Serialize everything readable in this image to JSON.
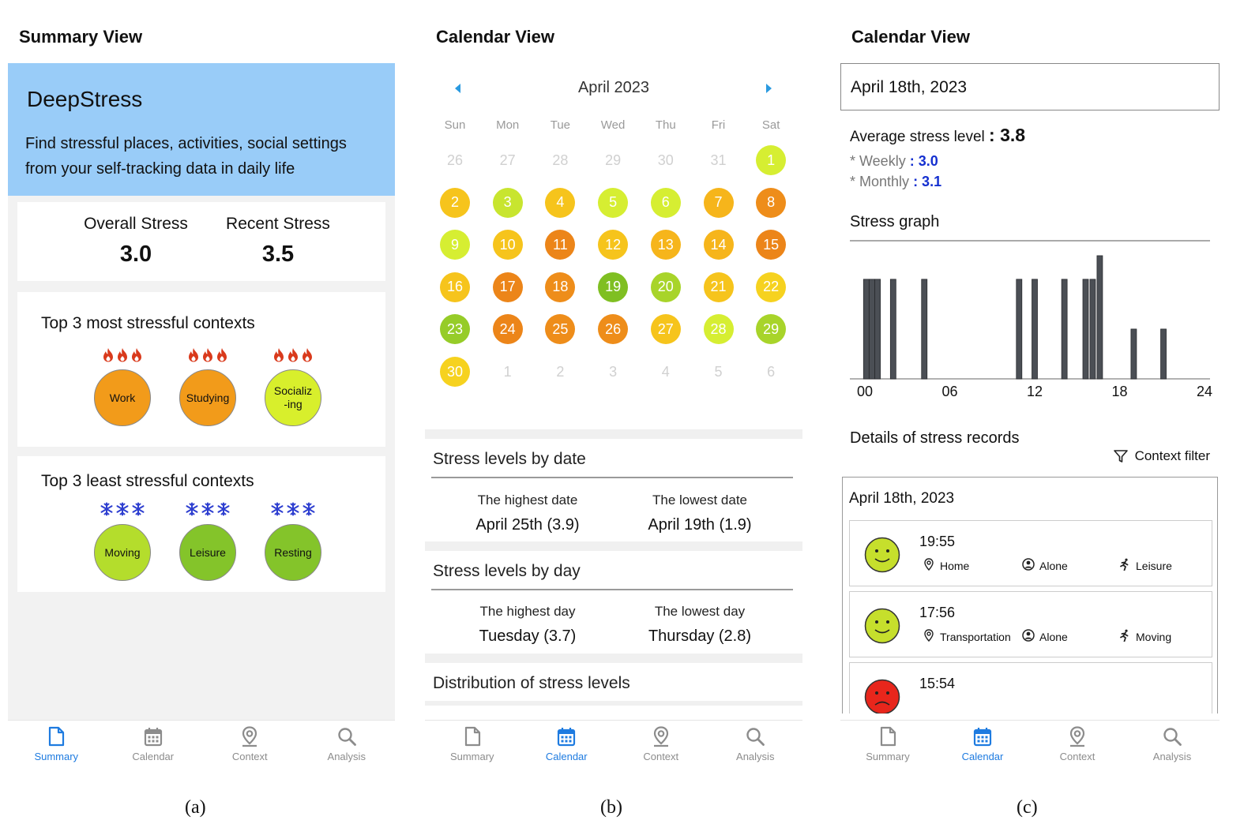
{
  "panel_a": {
    "heading": "Summary View",
    "caption": "(a)",
    "app_name": "DeepStress",
    "description": "Find stressful places, activities, social settings from your self-tracking data in daily life",
    "overall_label": "Overall Stress",
    "overall_value": "3.0",
    "recent_label": "Recent Stress",
    "recent_value": "3.5",
    "most_title": "Top 3 most stressful contexts",
    "most": [
      {
        "label": "Work",
        "color": "#f29b1a"
      },
      {
        "label": "Studying",
        "color": "#f29b1a"
      },
      {
        "label": "Socializ\n-ing",
        "color": "#d8ef2c"
      }
    ],
    "least_title": "Top 3 least stressful contexts",
    "least": [
      {
        "label": "Moving",
        "color": "#b4dd2c"
      },
      {
        "label": "Leisure",
        "color": "#84c42a"
      },
      {
        "label": "Resting",
        "color": "#84c42a"
      }
    ],
    "hot_icon": "fire-icon",
    "cold_icon": "snowflake-icon",
    "hot_color": "#d93a1c",
    "cold_color": "#2e3fd0"
  },
  "panel_b": {
    "heading": "Calendar View",
    "caption": "(b)",
    "month": "April 2023",
    "weekdays": [
      "Sun",
      "Mon",
      "Tue",
      "Wed",
      "Thu",
      "Fri",
      "Sat"
    ],
    "weeks": [
      [
        {
          "d": "26",
          "m": 1
        },
        {
          "d": "27",
          "m": 1
        },
        {
          "d": "28",
          "m": 1
        },
        {
          "d": "29",
          "m": 1
        },
        {
          "d": "30",
          "m": 1
        },
        {
          "d": "31",
          "m": 1
        },
        {
          "d": "1",
          "c": "#d6ee32"
        }
      ],
      [
        {
          "d": "2",
          "c": "#f6c41c"
        },
        {
          "d": "3",
          "c": "#c8e52f"
        },
        {
          "d": "4",
          "c": "#f6c41c"
        },
        {
          "d": "5",
          "c": "#d6ee32"
        },
        {
          "d": "6",
          "c": "#d6ee32"
        },
        {
          "d": "7",
          "c": "#f6b51b"
        },
        {
          "d": "8",
          "c": "#ee8d1a"
        }
      ],
      [
        {
          "d": "9",
          "c": "#d6ee32"
        },
        {
          "d": "10",
          "c": "#f6c41c"
        },
        {
          "d": "11",
          "c": "#ec8519"
        },
        {
          "d": "12",
          "c": "#f6c41c"
        },
        {
          "d": "13",
          "c": "#f6b51b"
        },
        {
          "d": "14",
          "c": "#f6b51b"
        },
        {
          "d": "15",
          "c": "#ec8519"
        }
      ],
      [
        {
          "d": "16",
          "c": "#f6c41c"
        },
        {
          "d": "17",
          "c": "#ec8519"
        },
        {
          "d": "18",
          "c": "#ee8d1a"
        },
        {
          "d": "19",
          "c": "#7fbf22"
        },
        {
          "d": "20",
          "c": "#a8d42a"
        },
        {
          "d": "21",
          "c": "#f6c41c"
        },
        {
          "d": "22",
          "c": "#f6d21f"
        }
      ],
      [
        {
          "d": "23",
          "c": "#96cc28"
        },
        {
          "d": "24",
          "c": "#ec8519"
        },
        {
          "d": "25",
          "c": "#ee8d1a"
        },
        {
          "d": "26",
          "c": "#ee8d1a"
        },
        {
          "d": "27",
          "c": "#f6c41c"
        },
        {
          "d": "28",
          "c": "#d6ee32"
        },
        {
          "d": "29",
          "c": "#a8d42a"
        }
      ],
      [
        {
          "d": "30",
          "c": "#f6d21f"
        },
        {
          "d": "1",
          "m": 1
        },
        {
          "d": "2",
          "m": 1
        },
        {
          "d": "3",
          "m": 1
        },
        {
          "d": "4",
          "m": 1
        },
        {
          "d": "5",
          "m": 1
        },
        {
          "d": "6",
          "m": 1
        }
      ]
    ],
    "by_date": {
      "title": "Stress levels by date",
      "high_label": "The highest date",
      "high_value": "April 25th (3.9)",
      "low_label": "The lowest date",
      "low_value": "April 19th (1.9)"
    },
    "by_day": {
      "title": "Stress levels by day",
      "high_label": "The highest day",
      "high_value": "Tuesday (3.7)",
      "low_label": "The lowest day",
      "low_value": "Thursday (2.8)"
    },
    "distribution_title": "Distribution of stress levels"
  },
  "panel_c": {
    "heading": "Calendar View",
    "caption": "(c)",
    "date": "April 18th, 2023",
    "avg_label": "Average stress level",
    "avg_value": ": 3.8",
    "weekly_label": "* Weekly",
    "weekly_value": ": 3.0",
    "monthly_label": "* Monthly",
    "monthly_value": ": 3.1",
    "graph_title": "Stress graph",
    "details_title": "Details of stress records",
    "filter_label": "Context filter",
    "records_date": "April 18th, 2023",
    "records": [
      {
        "time": "19:55",
        "place": "Home",
        "social": "Alone",
        "activity": "Leisure",
        "mood": "happy",
        "color": "#c6df2c"
      },
      {
        "time": "17:56",
        "place": "Transportation",
        "social": "Alone",
        "activity": "Moving",
        "mood": "happy",
        "color": "#c6df2c"
      },
      {
        "time": "15:54",
        "place": "",
        "social": "",
        "activity": "",
        "mood": "sad",
        "color": "#e8261c"
      }
    ]
  },
  "chart_data": {
    "type": "bar",
    "title": "Stress graph",
    "x_tick_labels": [
      "00",
      "06",
      "12",
      "18",
      "24"
    ],
    "xlim": [
      0,
      24
    ],
    "ylim": [
      0,
      5
    ],
    "points": [
      {
        "x": 0.1,
        "y": 3.8
      },
      {
        "x": 0.5,
        "y": 3.8
      },
      {
        "x": 0.9,
        "y": 3.8
      },
      {
        "x": 2.0,
        "y": 3.8
      },
      {
        "x": 4.2,
        "y": 3.8
      },
      {
        "x": 10.9,
        "y": 3.8
      },
      {
        "x": 12.0,
        "y": 3.8
      },
      {
        "x": 14.1,
        "y": 3.8
      },
      {
        "x": 15.6,
        "y": 3.8
      },
      {
        "x": 16.1,
        "y": 3.8
      },
      {
        "x": 16.6,
        "y": 4.7
      },
      {
        "x": 19.0,
        "y": 1.9
      },
      {
        "x": 21.1,
        "y": 1.9
      }
    ],
    "grid": false
  },
  "nav": {
    "items": [
      {
        "label": "Summary",
        "icon": "summary-icon"
      },
      {
        "label": "Calendar",
        "icon": "calendar-icon"
      },
      {
        "label": "Context",
        "icon": "context-icon"
      },
      {
        "label": "Analysis",
        "icon": "analysis-icon"
      }
    ],
    "active_color": "#1e7be0",
    "inactive_color": "#8c8c8c"
  }
}
